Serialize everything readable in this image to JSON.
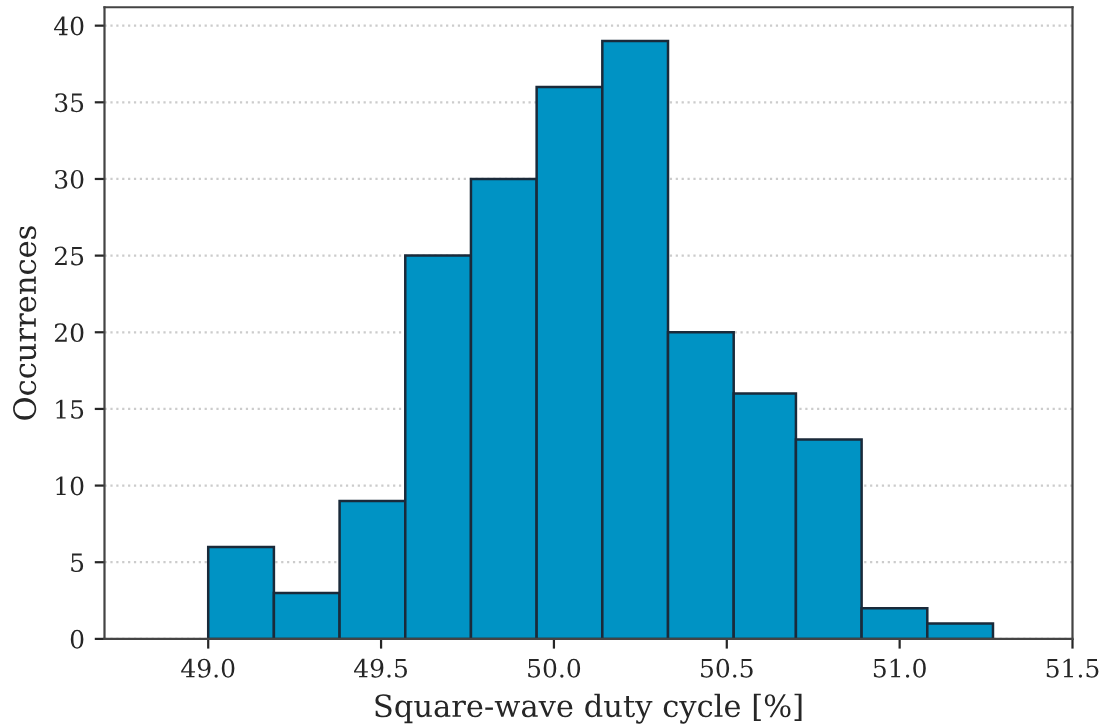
{
  "chart_data": {
    "type": "histogram",
    "xlabel": "Square-wave duty cycle [%]",
    "ylabel": "Occurrences",
    "bins": [
      49.0,
      49.19,
      49.38,
      49.57,
      49.76,
      49.95,
      50.14,
      50.33,
      50.52,
      50.7,
      50.89,
      51.08,
      51.27
    ],
    "values": [
      6,
      3,
      9,
      25,
      30,
      36,
      39,
      20,
      16,
      13,
      2,
      1
    ],
    "color": "#0093c4",
    "xlim": [
      48.7,
      51.5
    ],
    "xticks": [
      {
        "value": 49.0,
        "label": "49.0"
      },
      {
        "value": 49.5,
        "label": "49.5"
      },
      {
        "value": 50.0,
        "label": "50.0"
      },
      {
        "value": 50.5,
        "label": "50.5"
      },
      {
        "value": 51.0,
        "label": "51.0"
      },
      {
        "value": 51.5,
        "label": "51.5"
      }
    ],
    "ylim": [
      0,
      41.2
    ],
    "yticks": [
      0,
      5,
      10,
      15,
      20,
      25,
      30,
      35,
      40
    ],
    "grid": "y"
  }
}
